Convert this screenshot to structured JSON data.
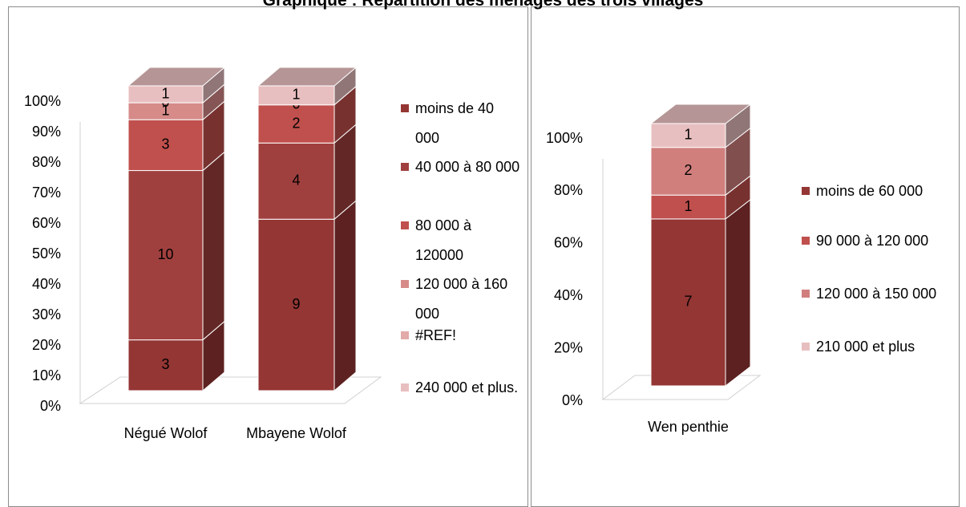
{
  "title": "Graphique : Répartition des ménages des trois villages",
  "chart_data": [
    {
      "type": "bar",
      "stacking": "percent",
      "categories": [
        "Négué Wolof",
        "Mbayene Wolof"
      ],
      "series": [
        {
          "name": "moins de 40 000",
          "color": "#943634",
          "values": [
            3,
            9
          ]
        },
        {
          "name": "40 000 à 80 000",
          "color": "#a0403e",
          "values": [
            10,
            4
          ]
        },
        {
          "name": "80 000 à 120000",
          "color": "#c0504d",
          "values": [
            3,
            2
          ]
        },
        {
          "name": "120 000 à 160 000",
          "color": "#d68b89",
          "values": [
            1,
            0
          ]
        },
        {
          "name": "#REF!",
          "color": "#e2aaa9",
          "values": [
            0,
            null
          ]
        },
        {
          "name": "240 000 et plus.",
          "color": "#e8bfc0",
          "values": [
            1,
            1
          ]
        }
      ],
      "ylim": [
        0,
        100
      ],
      "yticks": [
        {
          "value": 0,
          "label": "0%"
        },
        {
          "value": 10,
          "label": "10%"
        },
        {
          "value": 20,
          "label": "20%"
        },
        {
          "value": 30,
          "label": "30%"
        },
        {
          "value": 40,
          "label": "40%"
        },
        {
          "value": 50,
          "label": "50%"
        },
        {
          "value": 60,
          "label": "60%"
        },
        {
          "value": 70,
          "label": "70%"
        },
        {
          "value": 80,
          "label": "80%"
        },
        {
          "value": 90,
          "label": "90%"
        },
        {
          "value": 100,
          "label": "100%"
        }
      ],
      "legend": "right"
    },
    {
      "type": "bar",
      "stacking": "percent",
      "categories": [
        "Wen penthie"
      ],
      "series": [
        {
          "name": "moins de 60 000",
          "color": "#943634",
          "values": [
            7
          ]
        },
        {
          "name": "90 000 à 120 000",
          "color": "#c0504d",
          "values": [
            1
          ]
        },
        {
          "name": "120 000 à 150 000",
          "color": "#d07f7d",
          "values": [
            2
          ]
        },
        {
          "name": "210 000 et plus",
          "color": "#e8bfc0",
          "values": [
            1
          ]
        }
      ],
      "ylim": [
        0,
        100
      ],
      "yticks": [
        {
          "value": 0,
          "label": "0%"
        },
        {
          "value": 20,
          "label": "20%"
        },
        {
          "value": 40,
          "label": "40%"
        },
        {
          "value": 60,
          "label": "60%"
        },
        {
          "value": 80,
          "label": "80%"
        },
        {
          "value": 100,
          "label": "100%"
        }
      ],
      "legend": "right"
    }
  ]
}
